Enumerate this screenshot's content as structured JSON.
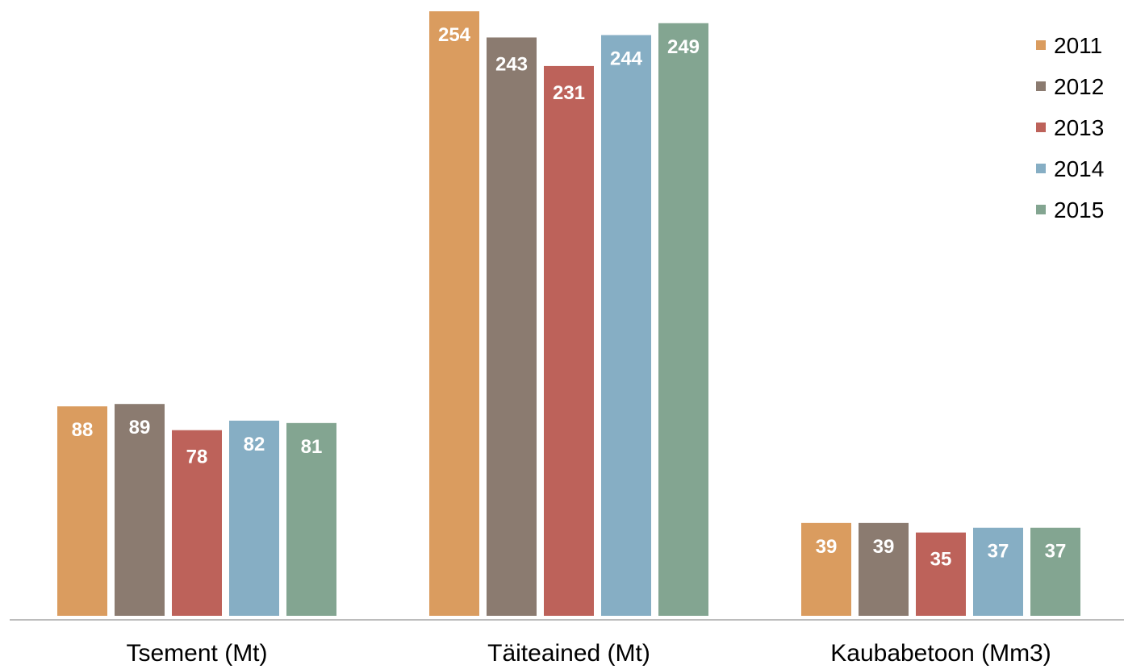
{
  "chart_data": {
    "type": "bar",
    "categories": [
      "Tsement (Mt)",
      "Täiteained (Mt)",
      "Kaubabetoon (Mm3)"
    ],
    "series": [
      {
        "name": "2011",
        "color": "#DA9C5F",
        "values": [
          88,
          254,
          39
        ]
      },
      {
        "name": "2012",
        "color": "#8B7B70",
        "values": [
          89,
          243,
          39
        ]
      },
      {
        "name": "2013",
        "color": "#BD625A",
        "values": [
          78,
          231,
          35
        ]
      },
      {
        "name": "2014",
        "color": "#86AEC4",
        "values": [
          82,
          244,
          37
        ]
      },
      {
        "name": "2015",
        "color": "#83A591",
        "values": [
          81,
          249,
          37
        ]
      }
    ],
    "data_labels": true,
    "legend_position": "top-right",
    "ylim": [
      0,
      254
    ],
    "grid": false
  }
}
